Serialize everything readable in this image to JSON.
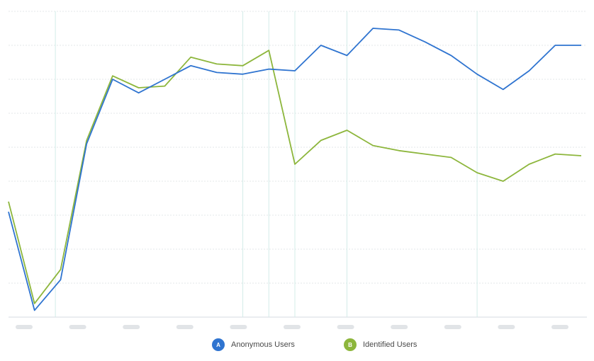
{
  "chart_data": {
    "type": "line",
    "title": "",
    "xlabel": "",
    "ylabel": "",
    "x_tick_labels_blurred": true,
    "ylim": [
      0,
      9
    ],
    "grid": {
      "horizontal": true,
      "vertical_markers": true
    },
    "legend_position": "bottom-center",
    "series": [
      {
        "name": "Anonymous Users",
        "badge": "A",
        "color": "#2f74d0",
        "values": [
          3.1,
          0.2,
          1.1,
          5.1,
          7.0,
          6.6,
          7.0,
          7.4,
          7.2,
          7.15,
          7.3,
          7.25,
          8.0,
          7.7,
          8.5,
          8.45,
          8.1,
          7.7,
          7.15,
          6.7,
          7.25,
          8.0,
          8.0
        ]
      },
      {
        "name": "Identified Users",
        "badge": "B",
        "color": "#8db63c",
        "values": [
          3.4,
          0.4,
          1.4,
          5.2,
          7.1,
          6.75,
          6.8,
          7.65,
          7.45,
          7.4,
          7.85,
          4.5,
          5.2,
          5.5,
          5.05,
          4.9,
          4.8,
          4.7,
          4.25,
          4.0,
          4.5,
          4.8,
          4.75
        ]
      }
    ],
    "x_positions_count": 23,
    "vertical_marker_indices": [
      1.8,
      9,
      10,
      11,
      13,
      18
    ]
  },
  "legend": {
    "items": [
      {
        "badge": "A",
        "label": "Anonymous Users",
        "color": "#2f74d0"
      },
      {
        "badge": "B",
        "label": "Identified Users",
        "color": "#8db63c"
      }
    ]
  }
}
